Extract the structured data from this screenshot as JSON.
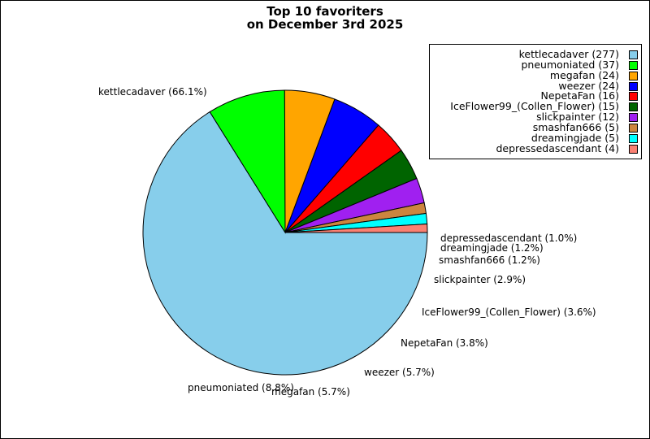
{
  "chart_data": {
    "type": "pie",
    "title_lines": [
      "Top 10 favoriters",
      "on December 3rd 2025"
    ],
    "slices": [
      {
        "name": "kettlecadaver",
        "value": 277,
        "percent": "66.1%",
        "color": "#87CEEB"
      },
      {
        "name": "pneumoniated",
        "value": 37,
        "percent": "8.8%",
        "color": "#00FF00"
      },
      {
        "name": "megafan",
        "value": 24,
        "percent": "5.7%",
        "color": "#FFA500"
      },
      {
        "name": "weezer",
        "value": 24,
        "percent": "5.7%",
        "color": "#0000FF"
      },
      {
        "name": "NepetaFan",
        "value": 16,
        "percent": "3.8%",
        "color": "#FF0000"
      },
      {
        "name": "IceFlower99_(Collen_Flower)",
        "value": 15,
        "percent": "3.6%",
        "color": "#006400"
      },
      {
        "name": "slickpainter",
        "value": 12,
        "percent": "2.9%",
        "color": "#A020F0"
      },
      {
        "name": "smashfan666",
        "value": 5,
        "percent": "1.2%",
        "color": "#CD853F"
      },
      {
        "name": "dreamingjade",
        "value": 5,
        "percent": "1.2%",
        "color": "#00FFFF"
      },
      {
        "name": "depressedascendant",
        "value": 4,
        "percent": "1.0%",
        "color": "#FA8072"
      }
    ],
    "slice_labels": [
      "kettlecadaver (66.1%)",
      "pneumoniated (8.8%)",
      "megafan (5.7%)",
      "weezer (5.7%)",
      "NepetaFan (3.8%)",
      "IceFlower99_(Collen_Flower) (3.6%)",
      "slickpainter (2.9%)",
      "smashfan666 (1.2%)",
      "dreamingjade (1.2%)",
      "depressedascendant (1.0%)"
    ],
    "legend_entries": [
      "kettlecadaver (277)",
      "pneumoniated (37)",
      "megafan (24)",
      "weezer (24)",
      "NepetaFan (16)",
      "IceFlower99_(Collen_Flower) (15)",
      "slickpainter (12)",
      "smashfan666 (5)",
      "dreamingjade (5)",
      "depressedascendant (4)"
    ],
    "legend_placement": "top-right",
    "start_angle_deg": 0,
    "direction": "clockwise"
  }
}
